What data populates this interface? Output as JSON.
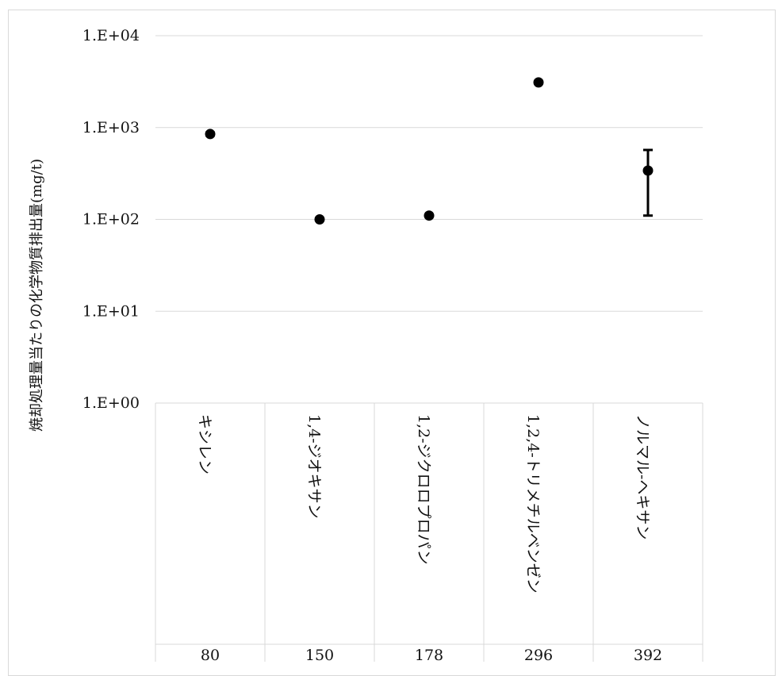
{
  "chart_data": {
    "type": "scatter",
    "title": "",
    "ylabel": "焼却処理量当たりの化学物質排出量(mg/t)",
    "yscale": "log",
    "ylim": [
      1,
      10000
    ],
    "y_tick_labels": [
      "1.E+00",
      "1.E+01",
      "1.E+02",
      "1.E+03",
      "1.E+04"
    ],
    "grid": true,
    "categories": [
      {
        "name": "キシレン",
        "code": "80"
      },
      {
        "name": "1,4-ジオキサン",
        "code": "150"
      },
      {
        "name": "1,2-ジクロロプロパン",
        "code": "178"
      },
      {
        "name": "1,2,4-トリメチルベンゼン",
        "code": "296"
      },
      {
        "name": "ノルマル-ヘキサン",
        "code": "392"
      }
    ],
    "series": [
      {
        "values": [
          850,
          100,
          110,
          3100,
          340
        ],
        "error_low": [
          820,
          null,
          null,
          null,
          110
        ],
        "error_high": [
          880,
          null,
          null,
          null,
          570
        ]
      }
    ],
    "colors": {
      "marker": "#000000",
      "grid": "#d9d9d9",
      "text": "#111111"
    }
  }
}
